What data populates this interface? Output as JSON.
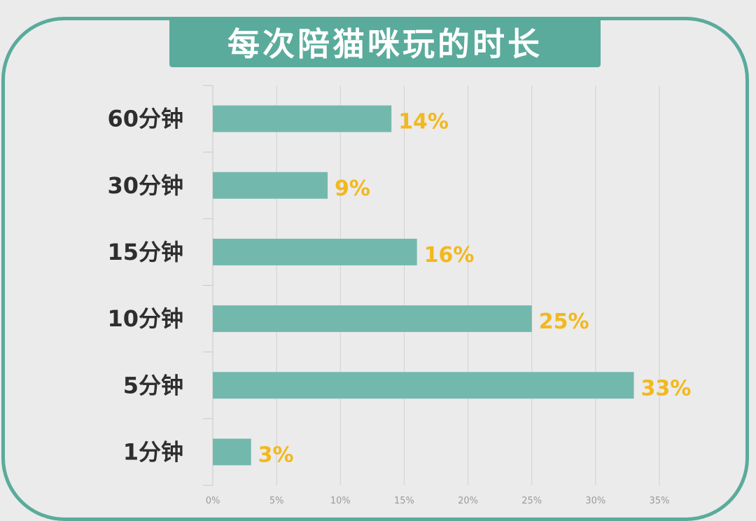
{
  "chart_data": {
    "type": "bar",
    "orientation": "horizontal",
    "title": "每次陪猫咪玩的时长",
    "categories": [
      "60分钟",
      "30分钟",
      "15分钟",
      "10分钟",
      "5分钟",
      "1分钟"
    ],
    "values": [
      14,
      9,
      16,
      25,
      33,
      3
    ],
    "value_labels": [
      "14%",
      "9%",
      "16%",
      "25%",
      "33%",
      "3%"
    ],
    "xlim": [
      0,
      35
    ],
    "x_ticks": [
      0,
      5,
      10,
      15,
      20,
      25,
      30,
      35
    ],
    "x_tick_labels": [
      "0%",
      "5%",
      "10%",
      "15%",
      "20%",
      "25%",
      "30%",
      "35%"
    ],
    "grid": "vertical",
    "legend": "none",
    "colors": {
      "bar": "#73b8ad",
      "frame": "#5aab9b",
      "value_label": "#f2b81d",
      "category_label": "#2e2e2e",
      "grid": "#d2d2d2",
      "background": "#ebebeb"
    }
  }
}
